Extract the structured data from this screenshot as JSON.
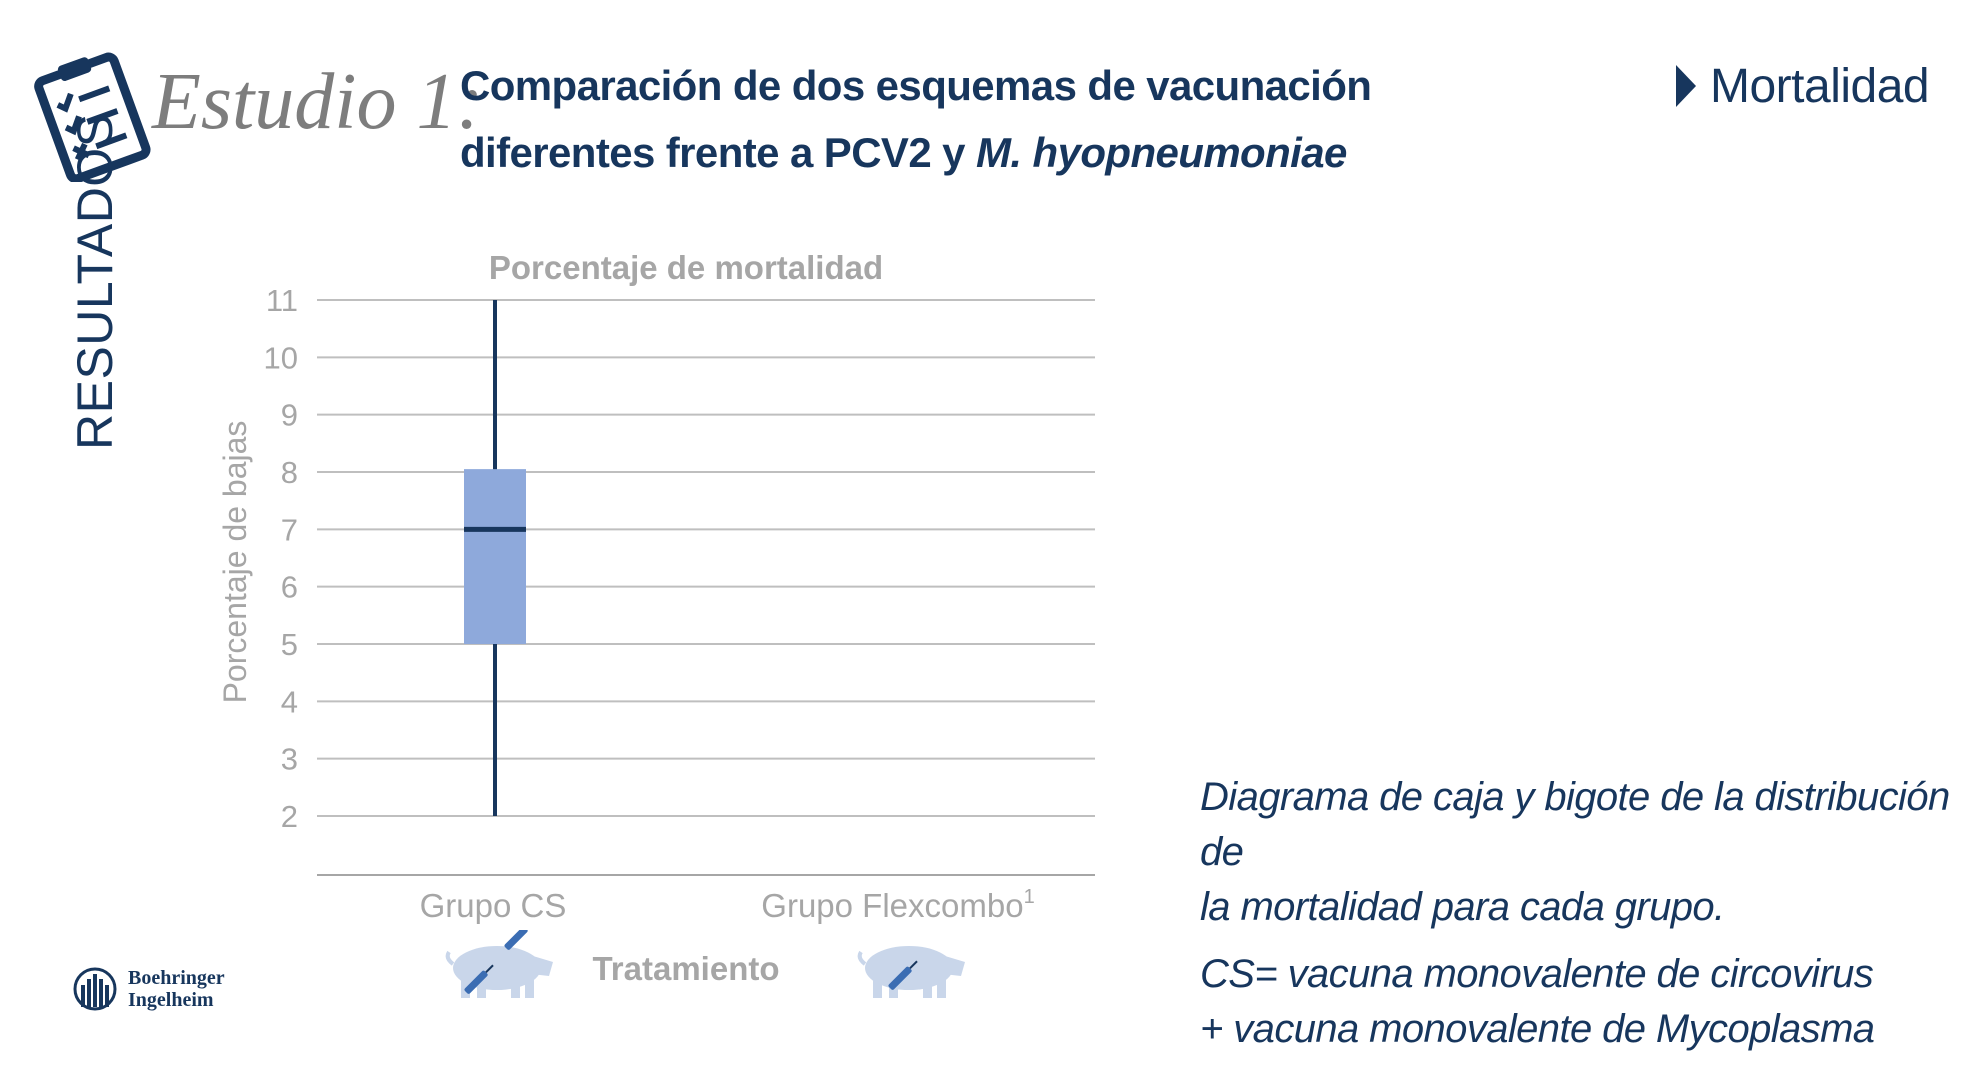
{
  "header": {
    "study_label": "Estudio 1:",
    "title_line1": "Comparación de dos esquemas de vacunación",
    "title_line2_prefix": "diferentes frente a PCV2 y ",
    "title_line2_italic": "M. hyopneumoniae",
    "section_label": "Mortalidad"
  },
  "side_label": "RESULTADOS",
  "icons": {
    "clipboard": "clipboard-checklist-icon",
    "section_arrow": "play-triangle-icon",
    "pig_cs": "pig-vaccine-icon",
    "pig_flex": "pig-vaccine-icon",
    "logo": "boehringer-logo-icon"
  },
  "chart_data": {
    "type": "boxplot",
    "title": "Porcentaje de mortalidad",
    "xlabel": "Tratamiento",
    "ylabel": "Porcentaje de bajas",
    "ylim": [
      1,
      11
    ],
    "yticks": [
      2,
      3,
      4,
      5,
      6,
      7,
      8,
      9,
      10,
      11
    ],
    "categories": [
      {
        "label": "Grupo CS",
        "sup": ""
      },
      {
        "label": "Grupo Flexcombo",
        "sup": "1"
      }
    ],
    "groups": [
      {
        "name": "Grupo CS",
        "min": 2,
        "q1": 5,
        "median": 7,
        "q3": 8.05,
        "max": 11
      },
      {
        "name": "Grupo Flexcombo",
        "min": null,
        "q1": null,
        "median": null,
        "q3": null,
        "max": null
      }
    ],
    "colors": {
      "box": "#8ea9db",
      "whisker": "#17365d",
      "grid": "#bfbfbf"
    }
  },
  "caption": {
    "line1": "Diagrama de caja y bigote de la distribución de",
    "line2": "la mortalidad para cada grupo.",
    "note_line1": "CS= vacuna monovalente de circovirus",
    "note_line2": "+ vacuna monovalente de Mycoplasma"
  },
  "logo": {
    "line1": "Boehringer",
    "line2": "Ingelheim"
  },
  "colors": {
    "brand_navy": "#17365d",
    "gray": "#7d7d7d",
    "light_gray": "#a6a6a6",
    "pig": "#c9d6ea"
  }
}
